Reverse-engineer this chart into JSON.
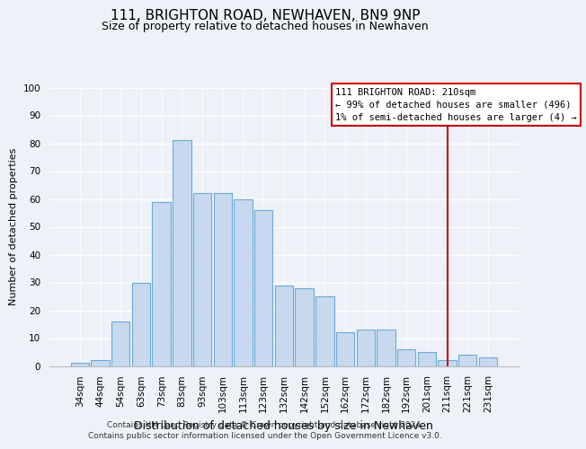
{
  "title": "111, BRIGHTON ROAD, NEWHAVEN, BN9 9NP",
  "subtitle": "Size of property relative to detached houses in Newhaven",
  "xlabel": "Distribution of detached houses by size in Newhaven",
  "ylabel": "Number of detached properties",
  "bar_labels": [
    "34sqm",
    "44sqm",
    "54sqm",
    "63sqm",
    "73sqm",
    "83sqm",
    "93sqm",
    "103sqm",
    "113sqm",
    "123sqm",
    "132sqm",
    "142sqm",
    "152sqm",
    "162sqm",
    "172sqm",
    "182sqm",
    "192sqm",
    "201sqm",
    "211sqm",
    "221sqm",
    "231sqm"
  ],
  "bar_values": [
    1,
    2,
    16,
    30,
    59,
    81,
    62,
    62,
    60,
    56,
    29,
    28,
    25,
    12,
    13,
    13,
    6,
    5,
    2,
    4,
    3
  ],
  "bar_color": "#c8d9ef",
  "bar_edge_color": "#6aaad4",
  "ylim": [
    0,
    100
  ],
  "yticks": [
    0,
    10,
    20,
    30,
    40,
    50,
    60,
    70,
    80,
    90,
    100
  ],
  "annotation_line_bar_index": 18,
  "annotation_box_text": "111 BRIGHTON ROAD: 210sqm\n← 99% of detached houses are smaller (496)\n1% of semi-detached houses are larger (4) →",
  "annotation_box_edge_color": "#cc0000",
  "annotation_line_color": "#cc0000",
  "footer_line1": "Contains HM Land Registry data © Crown copyright and database right 2024.",
  "footer_line2": "Contains public sector information licensed under the Open Government Licence v3.0.",
  "background_color": "#eef2f8",
  "grid_color": "#ffffff",
  "title_fontsize": 11,
  "subtitle_fontsize": 9,
  "xlabel_fontsize": 9,
  "ylabel_fontsize": 8,
  "tick_fontsize": 7.5,
  "footer_fontsize": 6.5
}
